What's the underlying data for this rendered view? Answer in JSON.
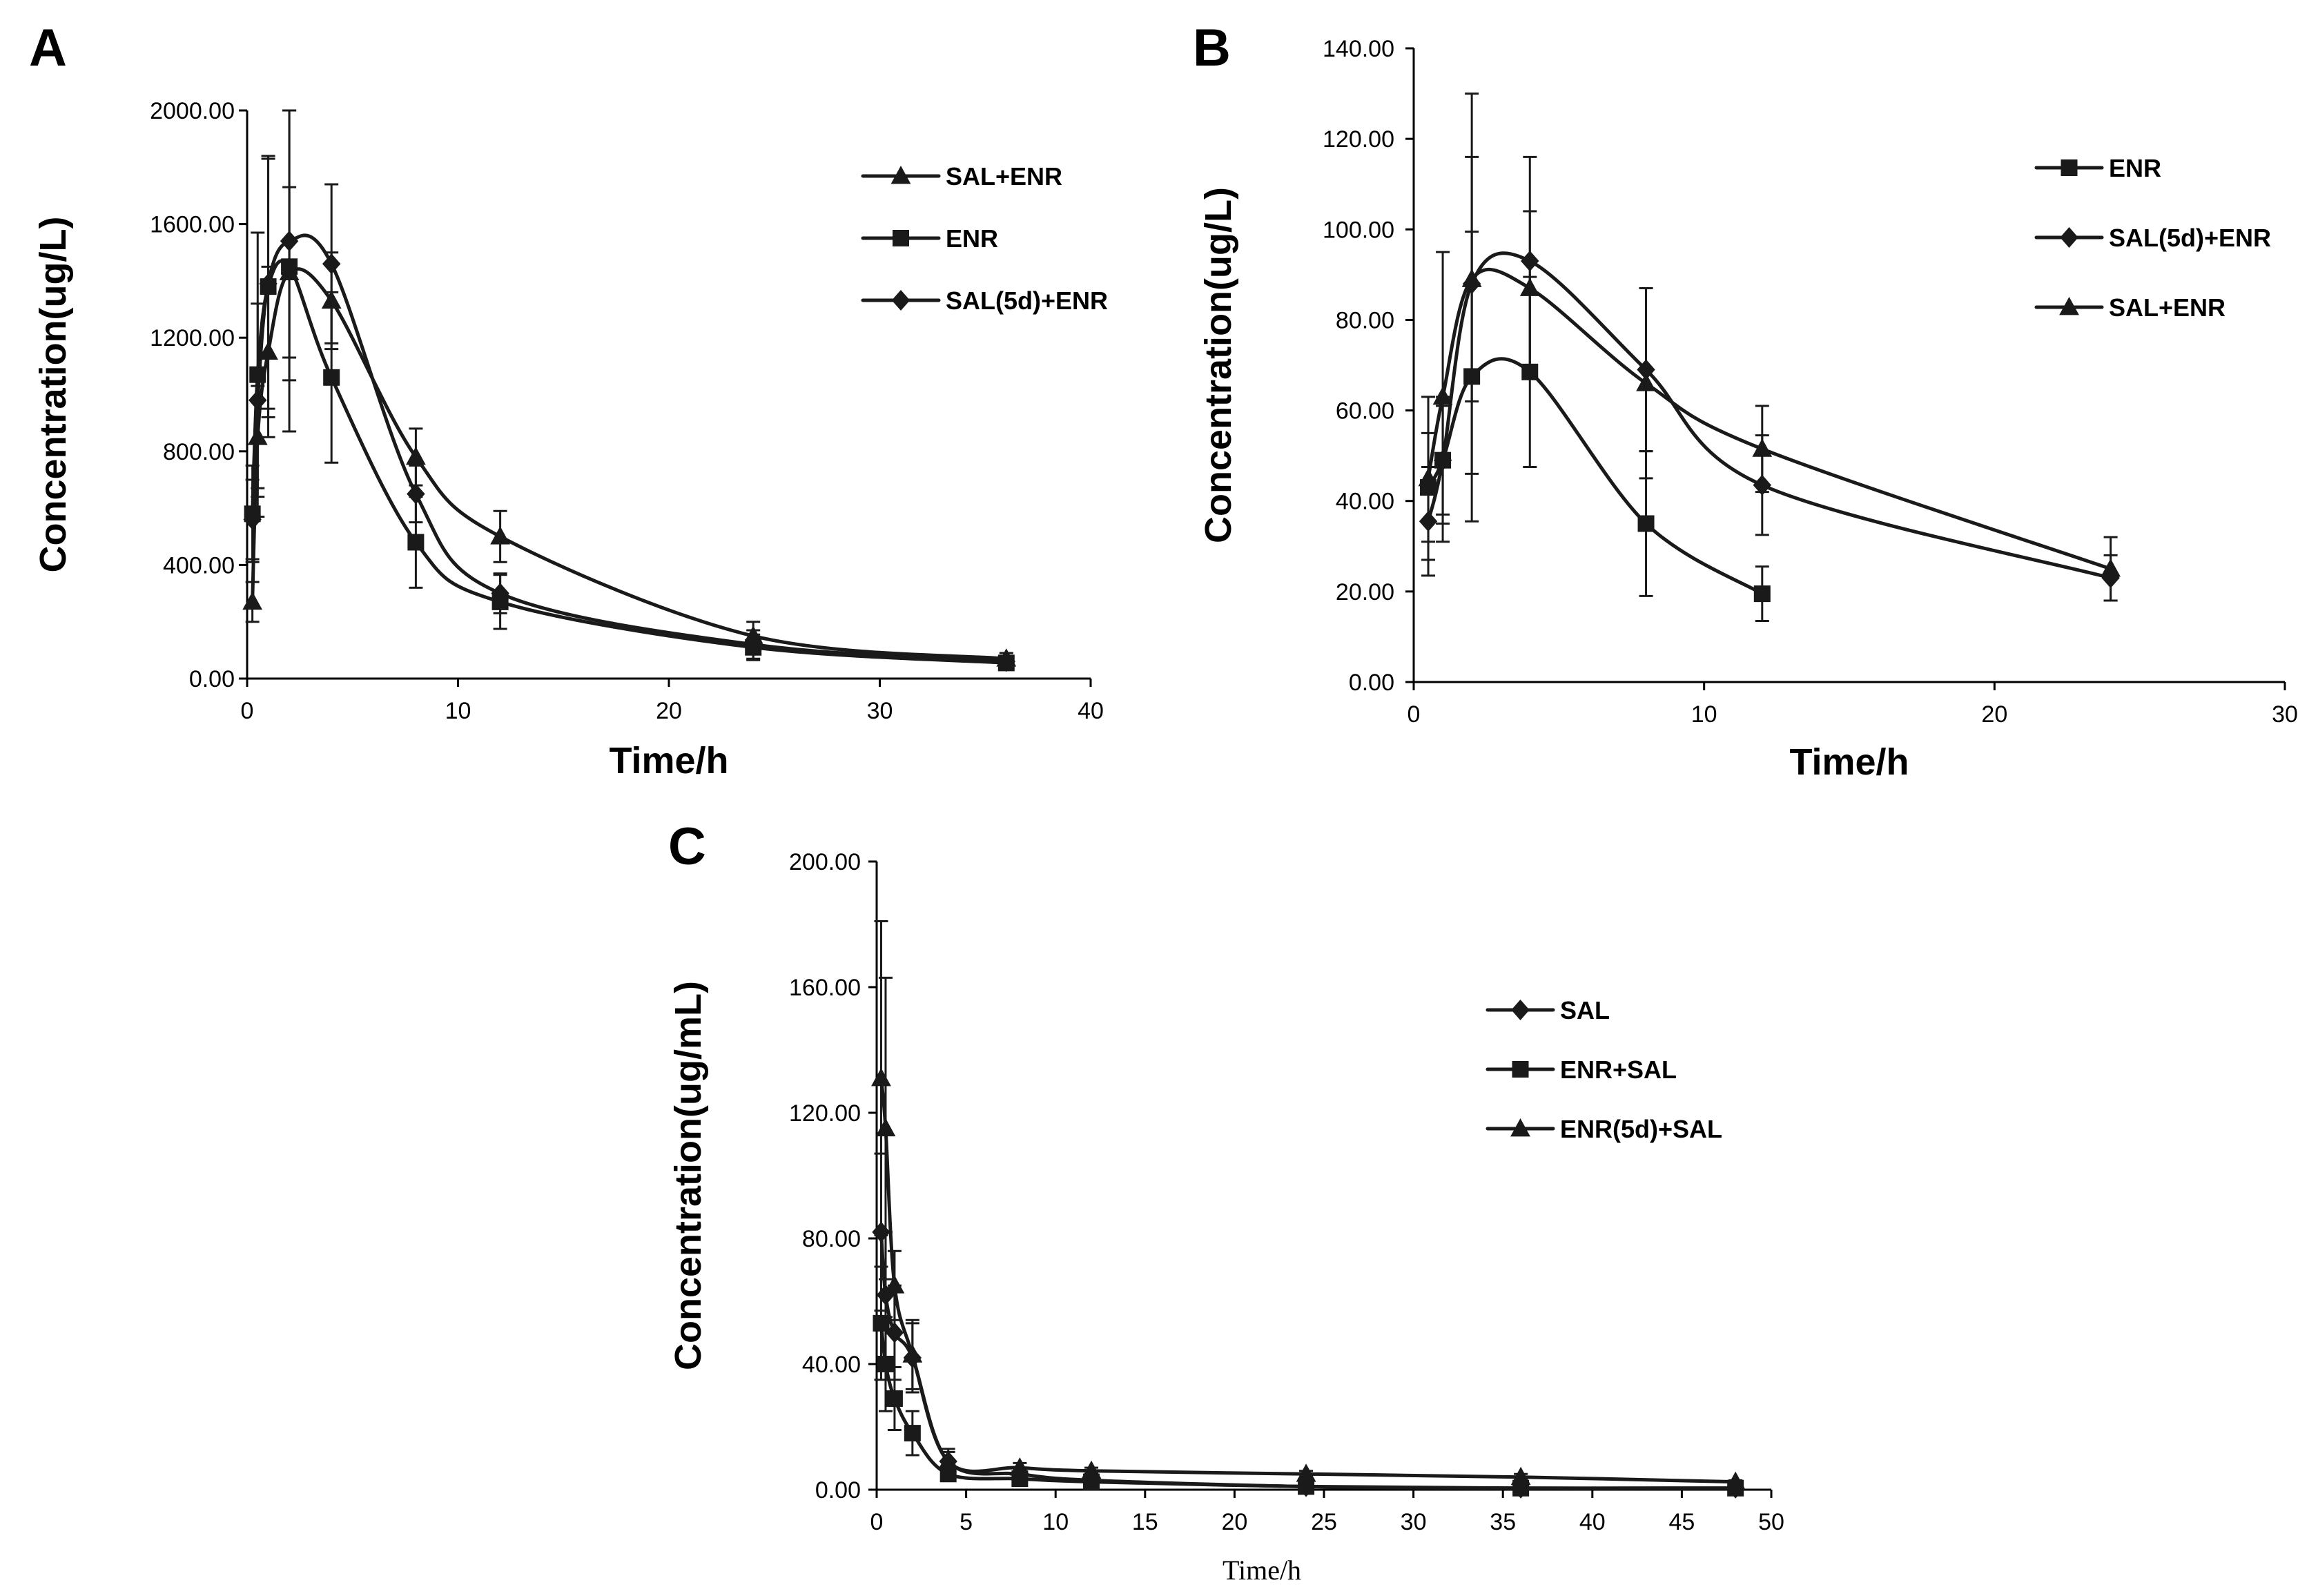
{
  "chart_data": [
    {
      "id": "A",
      "type": "line",
      "panel_label": "A",
      "xlabel": "Time/h",
      "ylabel": "Concentration(ug/L)",
      "xlim": [
        0,
        40
      ],
      "ylim": [
        0,
        2000
      ],
      "x_ticks": [
        0,
        10,
        20,
        30,
        40
      ],
      "y_ticks": [
        "0.00",
        "400.00",
        "800.00",
        "1200.00",
        "1600.00",
        "2000.00"
      ],
      "legend_position": "top-right",
      "series": [
        {
          "name": "SAL+ENR",
          "marker": "triangle",
          "x": [
            0.25,
            0.5,
            1,
            2,
            4,
            8,
            12,
            24,
            36
          ],
          "y": [
            270,
            850,
            1150,
            1430,
            1330,
            780,
            500,
            150,
            70
          ],
          "err": [
            70,
            180,
            300,
            300,
            170,
            100,
            90,
            50,
            20
          ]
        },
        {
          "name": "ENR",
          "marker": "square",
          "x": [
            0.25,
            0.5,
            1,
            2,
            4,
            8,
            12,
            24,
            36
          ],
          "y": [
            580,
            1070,
            1380,
            1450,
            1060,
            480,
            270,
            110,
            55
          ],
          "err": [
            170,
            500,
            460,
            580,
            300,
            160,
            95,
            45,
            15
          ]
        },
        {
          "name": "SAL(5d)+ENR",
          "marker": "diamond",
          "x": [
            0.25,
            0.5,
            1,
            2,
            4,
            8,
            12,
            24,
            36
          ],
          "y": [
            560,
            980,
            1390,
            1540,
            1460,
            650,
            300,
            120,
            60
          ],
          "err": [
            140,
            340,
            440,
            490,
            280,
            100,
            70,
            50,
            15
          ]
        }
      ]
    },
    {
      "id": "B",
      "type": "line",
      "panel_label": "B",
      "xlabel": "Time/h",
      "ylabel": "Concentration(ug/L)",
      "xlim": [
        0,
        30
      ],
      "ylim": [
        0,
        140
      ],
      "x_ticks": [
        0,
        10,
        20,
        30
      ],
      "y_ticks": [
        "0.00",
        "20.00",
        "40.00",
        "60.00",
        "80.00",
        "100.00",
        "120.00",
        "140.00"
      ],
      "legend_position": "top-right",
      "series": [
        {
          "name": "ENR",
          "marker": "square",
          "x": [
            0.5,
            1,
            2,
            4,
            8,
            12
          ],
          "y": [
            43,
            49,
            67.5,
            68.5,
            35,
            19.5
          ],
          "err": [
            12,
            14,
            32,
            21,
            16,
            6
          ]
        },
        {
          "name": "SAL(5d)+ENR",
          "marker": "diamond",
          "x": [
            0.5,
            1,
            2,
            4,
            8,
            12,
            24
          ],
          "y": [
            35.5,
            49,
            88,
            93,
            69,
            43.5,
            23
          ],
          "err": [
            12,
            12,
            42,
            23,
            18,
            11,
            5
          ]
        },
        {
          "name": "SAL+ENR",
          "marker": "triangle",
          "x": [
            0.5,
            1,
            2,
            4,
            8,
            12,
            24
          ],
          "y": [
            45,
            63,
            89,
            87,
            66,
            51.5,
            25
          ],
          "err": [
            18,
            32,
            27,
            17,
            21,
            9.5,
            7
          ]
        }
      ]
    },
    {
      "id": "C",
      "type": "line",
      "panel_label": "C",
      "xlabel": "Time/h",
      "ylabel": "Concentration(ug/mL)",
      "xlim": [
        0,
        50
      ],
      "ylim": [
        0,
        200
      ],
      "x_ticks": [
        0,
        5,
        10,
        15,
        20,
        25,
        30,
        35,
        40,
        45,
        50
      ],
      "y_ticks": [
        "0.00",
        "40.00",
        "80.00",
        "120.00",
        "160.00",
        "200.00"
      ],
      "legend_position": "right",
      "series": [
        {
          "name": "SAL",
          "marker": "diamond",
          "x": [
            0.25,
            0.5,
            1,
            2,
            4,
            8,
            12,
            24,
            36,
            48
          ],
          "y": [
            82,
            62,
            50,
            42,
            9,
            5,
            3,
            1,
            0.5,
            0.5
          ],
          "err": [
            25,
            20,
            15,
            11,
            3,
            2,
            1,
            0.5,
            0.3,
            0.3
          ]
        },
        {
          "name": "ENR+SAL",
          "marker": "square",
          "x": [
            0.25,
            0.5,
            1,
            2,
            4,
            8,
            12,
            24,
            36,
            48
          ],
          "y": [
            53,
            40,
            29,
            18,
            5,
            3.5,
            2.5,
            1,
            0.5,
            0.5
          ],
          "err": [
            18,
            15,
            10,
            7,
            2,
            1.5,
            1,
            0.5,
            0.3,
            0.3
          ]
        },
        {
          "name": "ENR(5d)+SAL",
          "marker": "triangle",
          "x": [
            0.25,
            0.5,
            1,
            2,
            4,
            8,
            12,
            24,
            36,
            48
          ],
          "y": [
            131,
            115,
            65,
            43,
            9,
            7,
            6,
            5,
            4,
            2.5
          ],
          "err": [
            50,
            48,
            11,
            11,
            4,
            1.5,
            1,
            1,
            1,
            0.5
          ]
        }
      ]
    }
  ]
}
